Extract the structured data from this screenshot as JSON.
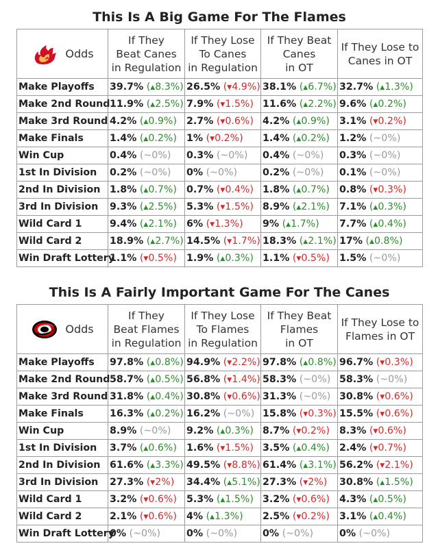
{
  "colors": {
    "up": "#2e8b2e",
    "down": "#d42a2a",
    "flat": "#999999",
    "flames_red": "#ce1126",
    "flames_yellow": "#f3bc52",
    "canes_red": "#cc0000"
  },
  "chart_data": [
    {
      "type": "table",
      "title": "This Is A Big Game For The Flames",
      "team_logo": "flames-logo-icon",
      "corner_label": "Odds",
      "columns": [
        "If They\nBeat Canes\nin Regulation",
        "If They Lose\nTo Canes\nin Regulation",
        "If They Beat\nCanes\nin OT",
        "If They Lose to\nCanes in OT"
      ],
      "rows": [
        {
          "label": "Make Playoffs",
          "cells": [
            [
              "39.7%",
              "8.3%",
              "up"
            ],
            [
              "26.5%",
              "4.9%",
              "down"
            ],
            [
              "38.1%",
              "6.7%",
              "up"
            ],
            [
              "32.7%",
              "1.3%",
              "up"
            ]
          ]
        },
        {
          "label": "Make 2nd Round",
          "cells": [
            [
              "11.9%",
              "2.5%",
              "up"
            ],
            [
              "7.9%",
              "1.5%",
              "down"
            ],
            [
              "11.6%",
              "2.2%",
              "up"
            ],
            [
              "9.6%",
              "0.2%",
              "up"
            ]
          ]
        },
        {
          "label": "Make 3rd Round",
          "cells": [
            [
              "4.2%",
              "0.9%",
              "up"
            ],
            [
              "2.7%",
              "0.6%",
              "down"
            ],
            [
              "4.2%",
              "0.9%",
              "up"
            ],
            [
              "3.1%",
              "0.2%",
              "down"
            ]
          ]
        },
        {
          "label": "Make Finals",
          "cells": [
            [
              "1.4%",
              "0.2%",
              "up"
            ],
            [
              "1%",
              "0.2%",
              "down"
            ],
            [
              "1.4%",
              "0.2%",
              "up"
            ],
            [
              "1.2%",
              "~0%",
              "flat"
            ]
          ]
        },
        {
          "label": "Win Cup",
          "cells": [
            [
              "0.4%",
              "~0%",
              "flat"
            ],
            [
              "0.3%",
              "~0%",
              "flat"
            ],
            [
              "0.4%",
              "~0%",
              "flat"
            ],
            [
              "0.3%",
              "~0%",
              "flat"
            ]
          ]
        },
        {
          "label": "1st In Division",
          "cells": [
            [
              "0.2%",
              "~0%",
              "flat"
            ],
            [
              "0%",
              "~0%",
              "flat"
            ],
            [
              "0.2%",
              "~0%",
              "flat"
            ],
            [
              "0.1%",
              "~0%",
              "flat"
            ]
          ]
        },
        {
          "label": "2nd In Division",
          "cells": [
            [
              "1.8%",
              "0.7%",
              "up"
            ],
            [
              "0.7%",
              "0.4%",
              "down"
            ],
            [
              "1.8%",
              "0.7%",
              "up"
            ],
            [
              "0.8%",
              "0.3%",
              "down"
            ]
          ]
        },
        {
          "label": "3rd In Division",
          "cells": [
            [
              "9.3%",
              "2.5%",
              "up"
            ],
            [
              "5.3%",
              "1.5%",
              "down"
            ],
            [
              "8.9%",
              "2.1%",
              "up"
            ],
            [
              "7.1%",
              "0.3%",
              "up"
            ]
          ]
        },
        {
          "label": "Wild Card 1",
          "cells": [
            [
              "9.4%",
              "2.1%",
              "up"
            ],
            [
              "6%",
              "1.3%",
              "down"
            ],
            [
              "9%",
              "1.7%",
              "up"
            ],
            [
              "7.7%",
              "0.4%",
              "up"
            ]
          ]
        },
        {
          "label": "Wild Card 2",
          "cells": [
            [
              "18.9%",
              "2.7%",
              "up"
            ],
            [
              "14.5%",
              "1.7%",
              "down"
            ],
            [
              "18.3%",
              "2.1%",
              "up"
            ],
            [
              "17%",
              "0.8%",
              "up"
            ]
          ]
        },
        {
          "label": "Win Draft Lottery",
          "cells": [
            [
              "1.1%",
              "0.5%",
              "down"
            ],
            [
              "1.9%",
              "0.3%",
              "up"
            ],
            [
              "1.1%",
              "0.5%",
              "down"
            ],
            [
              "1.5%",
              "~0%",
              "flat"
            ]
          ]
        }
      ]
    },
    {
      "type": "table",
      "title": "This Is A Fairly Important Game For The Canes",
      "team_logo": "hurricanes-logo-icon",
      "corner_label": "Odds",
      "columns": [
        "If They\nBeat Flames\nin Regulation",
        "If They Lose\nTo Flames\nin Regulation",
        "If They Beat\nFlames\nin OT",
        "If They Lose to\nFlames in OT"
      ],
      "rows": [
        {
          "label": "Make Playoffs",
          "cells": [
            [
              "97.8%",
              "0.8%",
              "up"
            ],
            [
              "94.9%",
              "2.2%",
              "down"
            ],
            [
              "97.8%",
              "0.8%",
              "up"
            ],
            [
              "96.7%",
              "0.3%",
              "down"
            ]
          ]
        },
        {
          "label": "Make 2nd Round",
          "cells": [
            [
              "58.7%",
              "0.5%",
              "up"
            ],
            [
              "56.8%",
              "1.4%",
              "down"
            ],
            [
              "58.3%",
              "~0%",
              "flat"
            ],
            [
              "58.3%",
              "~0%",
              "flat"
            ]
          ]
        },
        {
          "label": "Make 3rd Round",
          "cells": [
            [
              "31.8%",
              "0.4%",
              "up"
            ],
            [
              "30.8%",
              "0.6%",
              "down"
            ],
            [
              "31.3%",
              "~0%",
              "flat"
            ],
            [
              "30.8%",
              "0.6%",
              "down"
            ]
          ]
        },
        {
          "label": "Make Finals",
          "cells": [
            [
              "16.3%",
              "0.2%",
              "up"
            ],
            [
              "16.2%",
              "~0%",
              "flat"
            ],
            [
              "15.8%",
              "0.3%",
              "down"
            ],
            [
              "15.5%",
              "0.6%",
              "down"
            ]
          ]
        },
        {
          "label": "Win Cup",
          "cells": [
            [
              "8.9%",
              "~0%",
              "flat"
            ],
            [
              "9.2%",
              "0.3%",
              "up"
            ],
            [
              "8.7%",
              "0.2%",
              "down"
            ],
            [
              "8.3%",
              "0.6%",
              "down"
            ]
          ]
        },
        {
          "label": "1st In Division",
          "cells": [
            [
              "3.7%",
              "0.6%",
              "up"
            ],
            [
              "1.6%",
              "1.5%",
              "down"
            ],
            [
              "3.5%",
              "0.4%",
              "up"
            ],
            [
              "2.4%",
              "0.7%",
              "down"
            ]
          ]
        },
        {
          "label": "2nd In Division",
          "cells": [
            [
              "61.6%",
              "3.3%",
              "up"
            ],
            [
              "49.5%",
              "8.8%",
              "down"
            ],
            [
              "61.4%",
              "3.1%",
              "up"
            ],
            [
              "56.2%",
              "2.1%",
              "down"
            ]
          ]
        },
        {
          "label": "3rd In Division",
          "cells": [
            [
              "27.3%",
              "2%",
              "down"
            ],
            [
              "34.4%",
              "5.1%",
              "up"
            ],
            [
              "27.3%",
              "2%",
              "down"
            ],
            [
              "30.8%",
              "1.5%",
              "up"
            ]
          ]
        },
        {
          "label": "Wild Card 1",
          "cells": [
            [
              "3.2%",
              "0.6%",
              "down"
            ],
            [
              "5.3%",
              "1.5%",
              "up"
            ],
            [
              "3.2%",
              "0.6%",
              "down"
            ],
            [
              "4.3%",
              "0.5%",
              "up"
            ]
          ]
        },
        {
          "label": "Wild Card 2",
          "cells": [
            [
              "2.1%",
              "0.6%",
              "down"
            ],
            [
              "4%",
              "1.3%",
              "up"
            ],
            [
              "2.5%",
              "0.2%",
              "down"
            ],
            [
              "3.1%",
              "0.4%",
              "up"
            ]
          ]
        },
        {
          "label": "Win Draft Lottery",
          "cells": [
            [
              "0%",
              "~0%",
              "flat"
            ],
            [
              "0%",
              "~0%",
              "flat"
            ],
            [
              "0%",
              "~0%",
              "flat"
            ],
            [
              "0%",
              "~0%",
              "flat"
            ]
          ]
        }
      ]
    }
  ]
}
